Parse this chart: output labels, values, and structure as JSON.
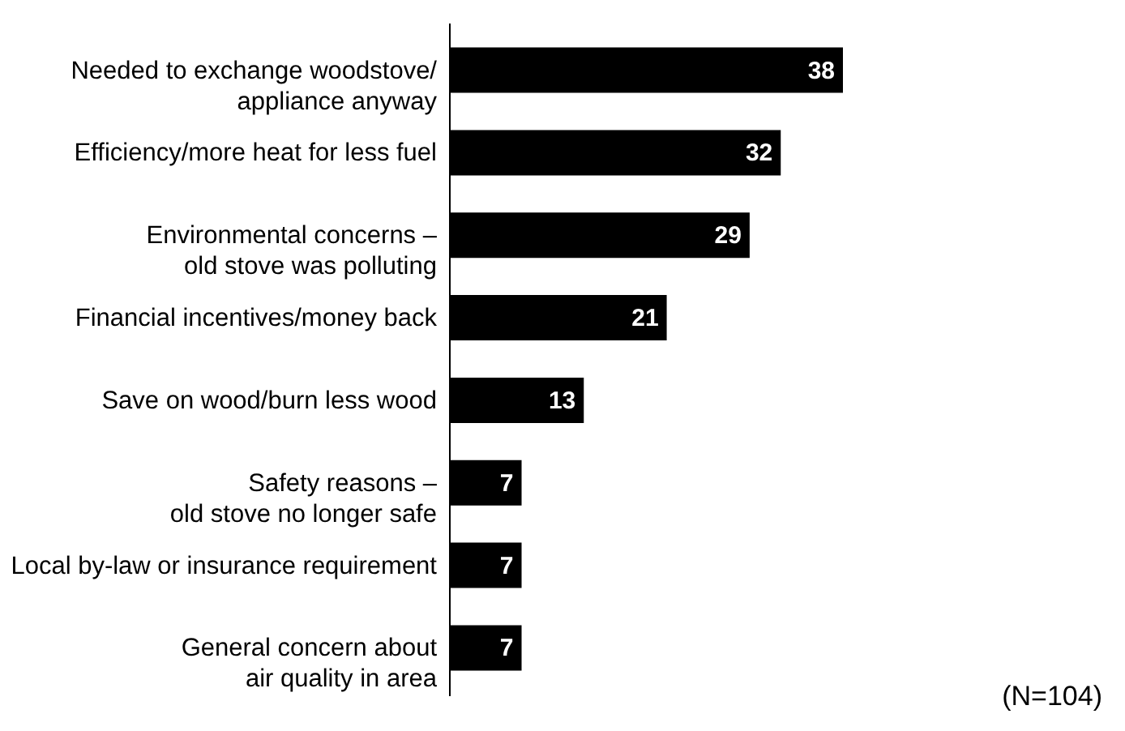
{
  "chart_data": {
    "type": "bar",
    "orientation": "horizontal",
    "categories": [
      "Needed to exchange woodstove/\nappliance anyway",
      "Efficiency/more heat for less fuel",
      "Environmental concerns –\nold stove was polluting",
      "Financial incentives/money back",
      "Save on wood/burn less wood",
      "Safety reasons –\nold stove no longer safe",
      "Local by-law or insurance requirement",
      "General concern about\nair quality in area"
    ],
    "values": [
      38,
      32,
      29,
      21,
      13,
      7,
      7,
      7
    ],
    "color": "#000000",
    "data_labels": true,
    "annotations": [
      "(N=104)"
    ]
  }
}
